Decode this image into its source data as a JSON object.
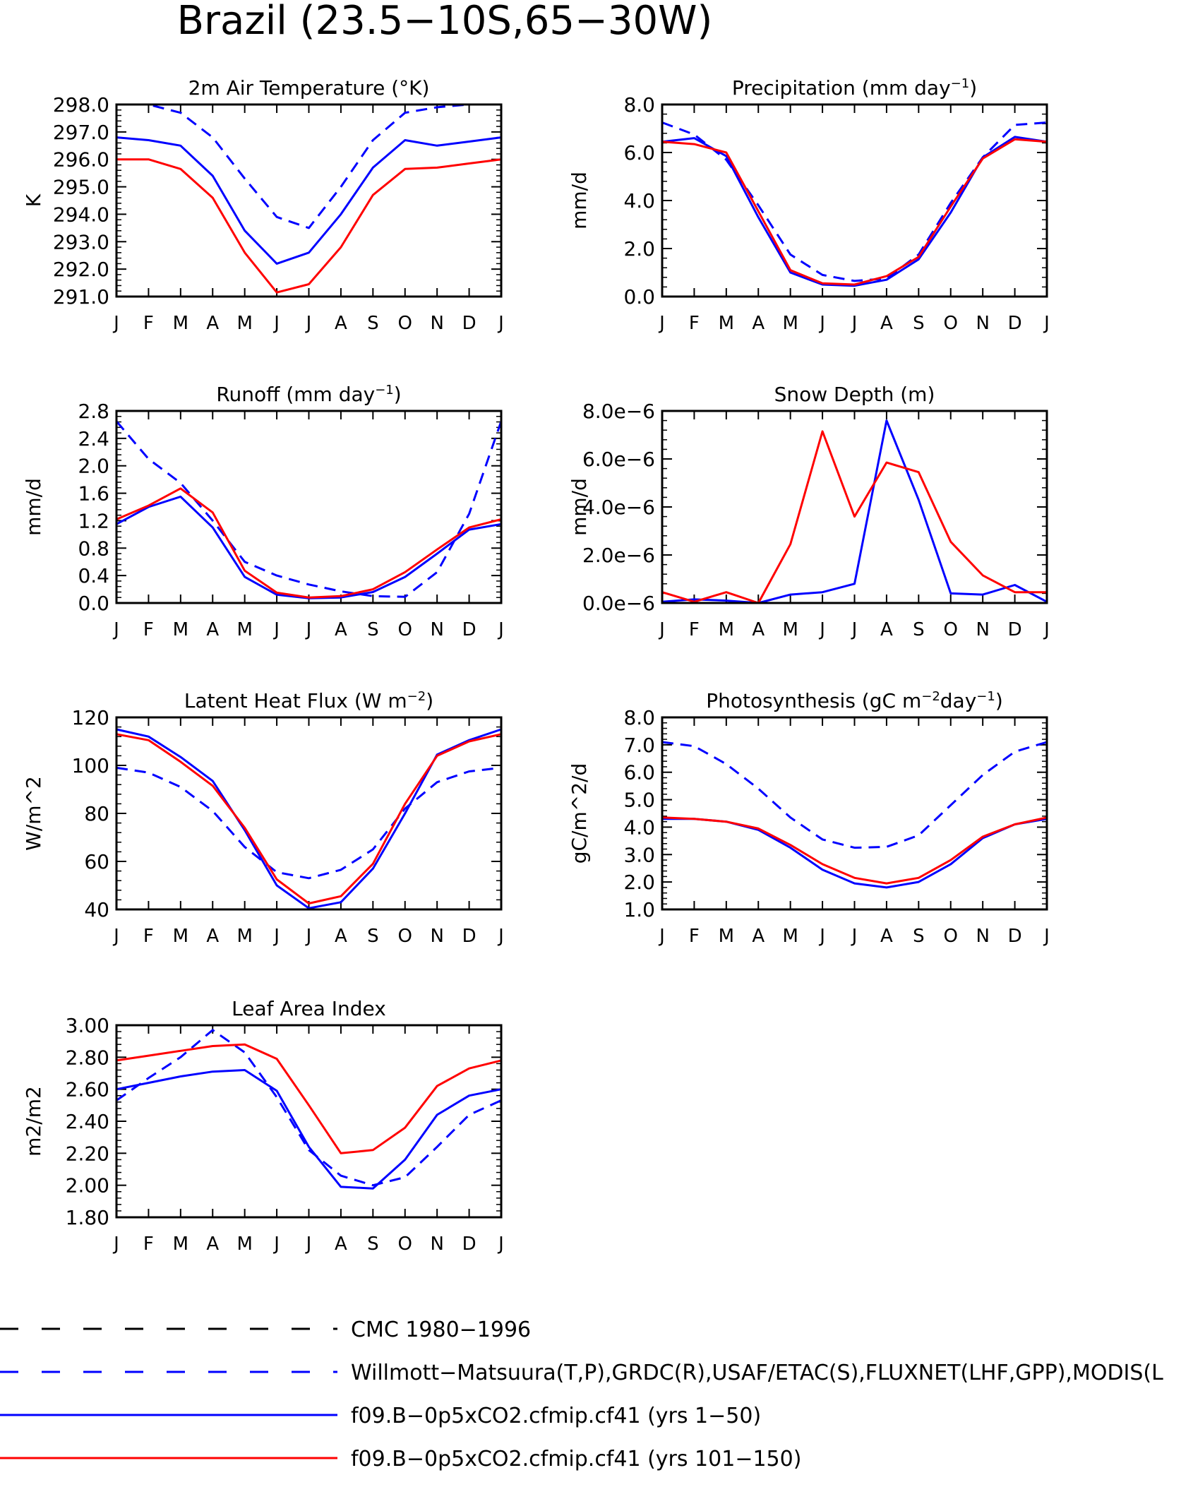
{
  "figure": {
    "title": "Brazil (23.5−10S,65−30W)"
  },
  "months": [
    "J",
    "F",
    "M",
    "A",
    "M",
    "J",
    "J",
    "A",
    "S",
    "O",
    "N",
    "D",
    "J"
  ],
  "series_styles": {
    "obs": {
      "color": "#0000ff",
      "dash": true
    },
    "cmc": {
      "color": "#000000",
      "dash": true
    },
    "cf41_early": {
      "color": "#0000ff",
      "dash": false
    },
    "cf41_late": {
      "color": "#ff0000",
      "dash": false
    }
  },
  "legend": {
    "items": [
      {
        "series": "cmc",
        "label": "CMC 1980−1996"
      },
      {
        "series": "obs",
        "label": "Willmott−Matsuura(T,P),GRDC(R),USAF/ETAC(S),FLUXNET(LHF,GPP),MODIS(L"
      },
      {
        "series": "cf41_early",
        "label": "f09.B−0p5xCO2.cfmip.cf41 (yrs 1−50)"
      },
      {
        "series": "cf41_late",
        "label": "f09.B−0p5xCO2.cfmip.cf41 (yrs 101−150)"
      }
    ]
  },
  "chart_data": [
    {
      "id": "temp",
      "type": "line",
      "title_main": "2m Air Temperature (°K)",
      "title_sup": "",
      "title_tail": "",
      "ylabel": "K",
      "ylim": [
        291.0,
        298.0
      ],
      "yticks": [
        "291.0",
        "292.0",
        "293.0",
        "294.0",
        "295.0",
        "296.0",
        "297.0",
        "298.0"
      ],
      "x": [
        "J",
        "F",
        "M",
        "A",
        "M",
        "J",
        "J",
        "A",
        "S",
        "O",
        "N",
        "D",
        "J"
      ],
      "series": [
        {
          "key": "obs",
          "values": [
            298.0,
            298.0,
            297.7,
            296.8,
            295.3,
            293.9,
            293.5,
            295.0,
            296.7,
            297.7,
            297.9,
            298.0,
            298.0
          ]
        },
        {
          "key": "cf41_early",
          "values": [
            296.8,
            296.7,
            296.5,
            295.4,
            293.4,
            292.2,
            292.6,
            294.0,
            295.7,
            296.7,
            296.5,
            296.65,
            296.8
          ]
        },
        {
          "key": "cf41_late",
          "values": [
            296.0,
            296.0,
            295.65,
            294.6,
            292.6,
            291.15,
            291.45,
            292.8,
            294.7,
            295.65,
            295.7,
            295.85,
            296.0
          ]
        }
      ]
    },
    {
      "id": "precip",
      "type": "line",
      "title_main": "Precipitation (mm day",
      "title_sup": "−1",
      "title_tail": ")",
      "ylabel": "mm/d",
      "ylim": [
        0.0,
        8.0
      ],
      "yticks": [
        "0.0",
        "2.0",
        "4.0",
        "6.0",
        "8.0"
      ],
      "x": [
        "J",
        "F",
        "M",
        "A",
        "M",
        "J",
        "J",
        "A",
        "S",
        "O",
        "N",
        "D",
        "J"
      ],
      "series": [
        {
          "key": "obs",
          "values": [
            7.25,
            6.75,
            5.7,
            3.8,
            1.75,
            0.9,
            0.65,
            0.75,
            1.75,
            3.9,
            5.8,
            7.15,
            7.25
          ]
        },
        {
          "key": "cf41_early",
          "values": [
            6.45,
            6.6,
            5.85,
            3.3,
            1.0,
            0.5,
            0.45,
            0.7,
            1.55,
            3.5,
            5.8,
            6.65,
            6.45
          ]
        },
        {
          "key": "cf41_late",
          "values": [
            6.45,
            6.35,
            6.0,
            3.55,
            1.1,
            0.55,
            0.5,
            0.85,
            1.65,
            3.75,
            5.75,
            6.55,
            6.45
          ]
        }
      ]
    },
    {
      "id": "runoff",
      "type": "line",
      "title_main": "Runoff (mm day",
      "title_sup": "−1",
      "title_tail": ")",
      "ylabel": "mm/d",
      "ylim": [
        0.0,
        2.8
      ],
      "yticks": [
        "0.0",
        "0.4",
        "0.8",
        "1.2",
        "1.6",
        "2.0",
        "2.4",
        "2.8"
      ],
      "x": [
        "J",
        "F",
        "M",
        "A",
        "M",
        "J",
        "J",
        "A",
        "S",
        "O",
        "N",
        "D",
        "J"
      ],
      "series": [
        {
          "key": "obs",
          "values": [
            2.65,
            2.1,
            1.75,
            1.2,
            0.6,
            0.4,
            0.27,
            0.17,
            0.1,
            0.09,
            0.45,
            1.3,
            2.65
          ]
        },
        {
          "key": "cf41_early",
          "values": [
            1.15,
            1.4,
            1.55,
            1.1,
            0.38,
            0.12,
            0.07,
            0.08,
            0.16,
            0.38,
            0.72,
            1.07,
            1.15
          ]
        },
        {
          "key": "cf41_late",
          "values": [
            1.22,
            1.42,
            1.67,
            1.32,
            0.47,
            0.15,
            0.08,
            0.1,
            0.2,
            0.45,
            0.78,
            1.1,
            1.22
          ]
        }
      ]
    },
    {
      "id": "snow",
      "type": "line",
      "title_main": "Snow Depth (m)",
      "title_sup": "",
      "title_tail": "",
      "ylabel": "mm/d",
      "ylim": [
        0.0,
        8e-06
      ],
      "yticks": [
        "0.0e−6",
        "2.0e−6",
        "4.0e−6",
        "6.0e−6",
        "8.0e−6"
      ],
      "x": [
        "J",
        "F",
        "M",
        "A",
        "M",
        "J",
        "J",
        "A",
        "S",
        "O",
        "N",
        "D",
        "J"
      ],
      "series": [
        {
          "key": "cmc",
          "values": [
            0,
            0,
            0,
            0,
            0,
            0,
            0,
            0,
            0,
            0,
            0,
            0,
            0
          ]
        },
        {
          "key": "cf41_early",
          "values": [
            5e-08,
            1.5e-07,
            1e-07,
            0.0,
            3.5e-07,
            4.5e-07,
            8e-07,
            7.6e-06,
            4.3e-06,
            4e-07,
            3.5e-07,
            7.5e-07,
            5e-08
          ]
        },
        {
          "key": "cf41_late",
          "values": [
            4.5e-07,
            5e-08,
            4.5e-07,
            0.0,
            2.45e-06,
            7.15e-06,
            3.6e-06,
            5.85e-06,
            5.45e-06,
            2.55e-06,
            1.15e-06,
            4.5e-07,
            4.5e-07
          ]
        }
      ]
    },
    {
      "id": "lhf",
      "type": "line",
      "title_main": "Latent Heat Flux (W m",
      "title_sup": "−2",
      "title_tail": ")",
      "ylabel": "W/m^2",
      "ylim": [
        40,
        120
      ],
      "yticks": [
        "40",
        "60",
        "80",
        "100",
        "120"
      ],
      "x": [
        "J",
        "F",
        "M",
        "A",
        "M",
        "J",
        "J",
        "A",
        "S",
        "O",
        "N",
        "D",
        "J"
      ],
      "series": [
        {
          "key": "obs",
          "values": [
            99,
            97,
            91,
            81,
            66,
            55.5,
            53,
            56.5,
            65,
            82,
            93,
            97.5,
            99
          ]
        },
        {
          "key": "cf41_early",
          "values": [
            115,
            112,
            103.5,
            93.5,
            73,
            50,
            40.5,
            43,
            57,
            80,
            104.5,
            110.5,
            115
          ]
        },
        {
          "key": "cf41_late",
          "values": [
            113,
            110.5,
            101.5,
            91.5,
            74,
            52.5,
            42.5,
            45.5,
            59,
            84,
            104,
            110,
            113
          ]
        }
      ]
    },
    {
      "id": "gpp",
      "type": "line",
      "title_main": "Photosynthesis (gC m",
      "title_sup": "−2",
      "title_tail": "day",
      "title_sup2": "−1",
      "title_tail2": ")",
      "ylabel": "gC/m^2/d",
      "ylim": [
        1.0,
        8.0
      ],
      "yticks": [
        "1.0",
        "2.0",
        "3.0",
        "4.0",
        "5.0",
        "6.0",
        "7.0",
        "8.0"
      ],
      "x": [
        "J",
        "F",
        "M",
        "A",
        "M",
        "J",
        "J",
        "A",
        "S",
        "O",
        "N",
        "D",
        "J"
      ],
      "series": [
        {
          "key": "obs",
          "values": [
            7.1,
            6.95,
            6.3,
            5.4,
            4.35,
            3.55,
            3.25,
            3.28,
            3.7,
            4.8,
            5.9,
            6.75,
            7.1
          ]
        },
        {
          "key": "cf41_early",
          "values": [
            4.3,
            4.3,
            4.2,
            3.9,
            3.25,
            2.45,
            1.95,
            1.8,
            2.0,
            2.65,
            3.6,
            4.1,
            4.3
          ]
        },
        {
          "key": "cf41_late",
          "values": [
            4.35,
            4.3,
            4.2,
            3.95,
            3.35,
            2.65,
            2.15,
            1.95,
            2.15,
            2.8,
            3.65,
            4.1,
            4.35
          ]
        }
      ]
    },
    {
      "id": "lai",
      "type": "line",
      "title_main": "Leaf Area Index",
      "title_sup": "",
      "title_tail": "",
      "ylabel": "m2/m2",
      "ylim": [
        1.8,
        3.0
      ],
      "yticks": [
        "1.80",
        "2.00",
        "2.20",
        "2.40",
        "2.60",
        "2.80",
        "3.00"
      ],
      "x": [
        "J",
        "F",
        "M",
        "A",
        "M",
        "J",
        "J",
        "A",
        "S",
        "O",
        "N",
        "D",
        "J"
      ],
      "series": [
        {
          "key": "obs",
          "values": [
            2.53,
            2.67,
            2.8,
            2.97,
            2.83,
            2.55,
            2.22,
            2.06,
            2.0,
            2.05,
            2.24,
            2.44,
            2.53
          ]
        },
        {
          "key": "cf41_early",
          "values": [
            2.6,
            2.64,
            2.68,
            2.71,
            2.72,
            2.59,
            2.24,
            1.99,
            1.98,
            2.16,
            2.44,
            2.56,
            2.6
          ]
        },
        {
          "key": "cf41_late",
          "values": [
            2.78,
            2.81,
            2.84,
            2.87,
            2.88,
            2.79,
            2.5,
            2.2,
            2.22,
            2.36,
            2.62,
            2.73,
            2.78
          ]
        }
      ]
    }
  ]
}
